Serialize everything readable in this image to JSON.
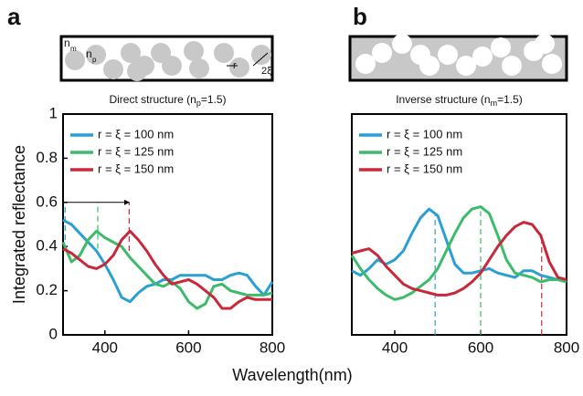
{
  "chart_data": [
    {
      "type": "line",
      "panel": "a",
      "title": [
        "Direct structure (n",
        "p",
        "=1.5)"
      ],
      "schematic_labels": [
        "n",
        "m",
        "n",
        "p",
        "r",
        "2ξ"
      ],
      "ylabel": "Integrated reflectance",
      "xlabel": "Wavelength(nm)",
      "xlim": [
        300,
        800
      ],
      "xticks": [
        400,
        600,
        800
      ],
      "ylim": [
        0,
        1
      ],
      "yticks": [
        0,
        0.2,
        0.4,
        0.6,
        0.8,
        1
      ],
      "x": [
        300,
        320,
        340,
        360,
        380,
        400,
        420,
        440,
        460,
        480,
        500,
        520,
        540,
        560,
        580,
        600,
        620,
        640,
        660,
        680,
        700,
        720,
        740,
        760,
        780,
        800
      ],
      "series": [
        {
          "name": "r = ξ = 100 nm",
          "color": "#2b9fd4",
          "values": [
            0.52,
            0.5,
            0.46,
            0.42,
            0.38,
            0.32,
            0.25,
            0.17,
            0.15,
            0.19,
            0.22,
            0.23,
            0.25,
            0.25,
            0.27,
            0.27,
            0.27,
            0.27,
            0.25,
            0.25,
            0.27,
            0.28,
            0.27,
            0.22,
            0.18,
            0.24
          ]
        },
        {
          "name": "r = ξ = 125 nm",
          "color": "#3dbb6a",
          "values": [
            0.42,
            0.33,
            0.36,
            0.43,
            0.47,
            0.44,
            0.42,
            0.4,
            0.35,
            0.31,
            0.27,
            0.23,
            0.22,
            0.24,
            0.21,
            0.15,
            0.12,
            0.14,
            0.22,
            0.23,
            0.2,
            0.19,
            0.18,
            0.18,
            0.18,
            0.19
          ]
        },
        {
          "name": "r = ξ = 150 nm",
          "color": "#c8283a",
          "values": [
            0.39,
            0.37,
            0.34,
            0.31,
            0.3,
            0.32,
            0.36,
            0.43,
            0.47,
            0.43,
            0.38,
            0.32,
            0.27,
            0.23,
            0.24,
            0.25,
            0.23,
            0.2,
            0.17,
            0.12,
            0.12,
            0.15,
            0.17,
            0.16,
            0.16,
            0.16
          ]
        }
      ],
      "peak_lines": [
        {
          "x": 305,
          "y": [
            0.43,
            0.6
          ]
        },
        {
          "x": 383,
          "y": [
            0.39,
            0.6
          ]
        },
        {
          "x": 458,
          "y": [
            0.38,
            0.6
          ]
        }
      ],
      "arrow": true
    },
    {
      "type": "line",
      "panel": "b",
      "title": [
        "Inverse structure (n",
        "m",
        "=1.5)"
      ],
      "xlim": [
        300,
        800
      ],
      "xticks": [
        400,
        600,
        800
      ],
      "ylim": [
        0,
        1
      ],
      "x": [
        300,
        320,
        340,
        360,
        380,
        400,
        420,
        440,
        460,
        480,
        500,
        520,
        540,
        560,
        580,
        600,
        620,
        640,
        660,
        680,
        700,
        720,
        740,
        760,
        780,
        800
      ],
      "series": [
        {
          "name": "r = ξ = 100 nm",
          "color": "#2b9fd4",
          "values": [
            0.29,
            0.27,
            0.3,
            0.34,
            0.32,
            0.34,
            0.38,
            0.46,
            0.53,
            0.57,
            0.54,
            0.43,
            0.32,
            0.28,
            0.28,
            0.29,
            0.3,
            0.28,
            0.27,
            0.26,
            0.29,
            0.29,
            0.27,
            0.26,
            0.25,
            0.24
          ]
        },
        {
          "name": "r = ξ = 125 nm",
          "color": "#3dbb6a",
          "values": [
            0.36,
            0.3,
            0.25,
            0.21,
            0.18,
            0.16,
            0.17,
            0.19,
            0.22,
            0.25,
            0.3,
            0.38,
            0.46,
            0.53,
            0.57,
            0.58,
            0.55,
            0.45,
            0.34,
            0.28,
            0.27,
            0.26,
            0.24,
            0.25,
            0.25,
            0.24
          ]
        },
        {
          "name": "r = ξ = 150 nm",
          "color": "#c8283a",
          "values": [
            0.37,
            0.38,
            0.39,
            0.36,
            0.31,
            0.27,
            0.23,
            0.21,
            0.2,
            0.19,
            0.18,
            0.18,
            0.19,
            0.21,
            0.24,
            0.28,
            0.34,
            0.4,
            0.45,
            0.49,
            0.51,
            0.5,
            0.45,
            0.33,
            0.26,
            0.25
          ]
        }
      ],
      "peak_lines": [
        {
          "x": 494,
          "y": [
            0,
            0.55
          ]
        },
        {
          "x": 600,
          "y": [
            0,
            0.56
          ]
        },
        {
          "x": 742,
          "y": [
            0,
            0.45
          ]
        }
      ],
      "arrow": false
    }
  ]
}
